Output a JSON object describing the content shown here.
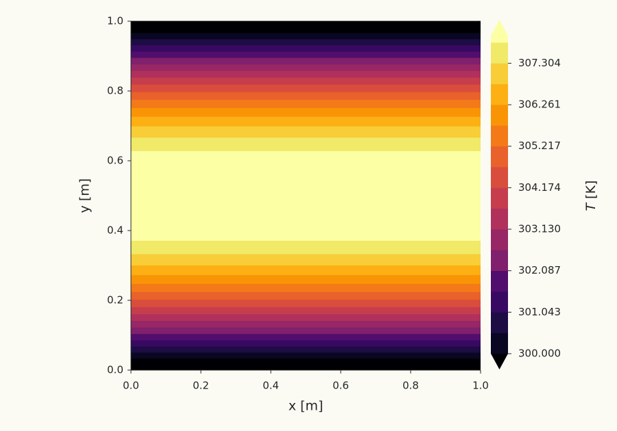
{
  "chart_data": {
    "type": "contourf",
    "x_label": "x [m]",
    "y_label": "y [m]",
    "colorbar_label": {
      "symbol": "T",
      "unit": "[K]"
    },
    "xlim": [
      0,
      1
    ],
    "ylim": [
      0,
      1
    ],
    "xticks": [
      {
        "value": 0,
        "label": "0.0"
      },
      {
        "value": 0.2,
        "label": "0.2"
      },
      {
        "value": 0.4,
        "label": "0.4"
      },
      {
        "value": 0.6,
        "label": "0.6"
      },
      {
        "value": 0.8,
        "label": "0.8"
      },
      {
        "value": 1,
        "label": "1.0"
      }
    ],
    "yticks": [
      {
        "value": 0,
        "label": "0.0"
      },
      {
        "value": 0.2,
        "label": "0.2"
      },
      {
        "value": 0.4,
        "label": "0.4"
      },
      {
        "value": 0.6,
        "label": "0.6"
      },
      {
        "value": 0.8,
        "label": "0.8"
      },
      {
        "value": 1,
        "label": "1.0"
      }
    ],
    "y": [
      0,
      0.025,
      0.05,
      0.075,
      0.1,
      0.125,
      0.15,
      0.175,
      0.2,
      0.225,
      0.25,
      0.275,
      0.3,
      0.325,
      0.35,
      0.375,
      0.4,
      0.425,
      0.45,
      0.475,
      0.5,
      0.525,
      0.55,
      0.575,
      0.6,
      0.625,
      0.65,
      0.675,
      0.7,
      0.725,
      0.75,
      0.775,
      0.8,
      0.825,
      0.85,
      0.875,
      0.9,
      0.925,
      0.95,
      0.975,
      1
    ],
    "values": [
      299.0,
      299.75,
      300.5,
      301.24,
      301.97,
      302.67,
      303.36,
      304.02,
      304.64,
      305.23,
      305.79,
      306.3,
      306.77,
      307.19,
      307.55,
      307.87,
      308.13,
      308.34,
      308.48,
      308.57,
      308.6,
      308.57,
      308.48,
      308.34,
      308.13,
      307.87,
      307.55,
      307.19,
      306.77,
      306.3,
      305.79,
      305.23,
      304.64,
      304.02,
      303.36,
      302.67,
      301.97,
      301.24,
      300.5,
      299.75,
      299.0
    ],
    "levels": [
      300,
      300.5217,
      301.0435,
      301.5652,
      302.087,
      302.6087,
      303.1304,
      303.6522,
      304.1739,
      304.6957,
      305.2174,
      305.7391,
      306.2609,
      306.7826,
      307.3043,
      307.8261
    ],
    "band_colors": [
      "#000004",
      "#0a0722",
      "#1e0c45",
      "#380962",
      "#510e6c",
      "#81206c",
      "#982766",
      "#b0315b",
      "#c63d4d",
      "#d94d3d",
      "#e9612b",
      "#f47918",
      "#fa9407",
      "#fcb014",
      "#f8cd37",
      "#f1e968",
      "#fcffa4"
    ],
    "clim": [
      300,
      308.0
    ],
    "colorbar_ticks": [
      {
        "value": 300,
        "label": "300.000"
      },
      {
        "value": 301.0435,
        "label": "301.043"
      },
      {
        "value": 302.087,
        "label": "302.087"
      },
      {
        "value": 303.1304,
        "label": "303.130"
      },
      {
        "value": 304.1739,
        "label": "304.174"
      },
      {
        "value": 305.2174,
        "label": "305.217"
      },
      {
        "value": 306.2609,
        "label": "306.261"
      },
      {
        "value": 307.3043,
        "label": "307.304"
      }
    ]
  }
}
